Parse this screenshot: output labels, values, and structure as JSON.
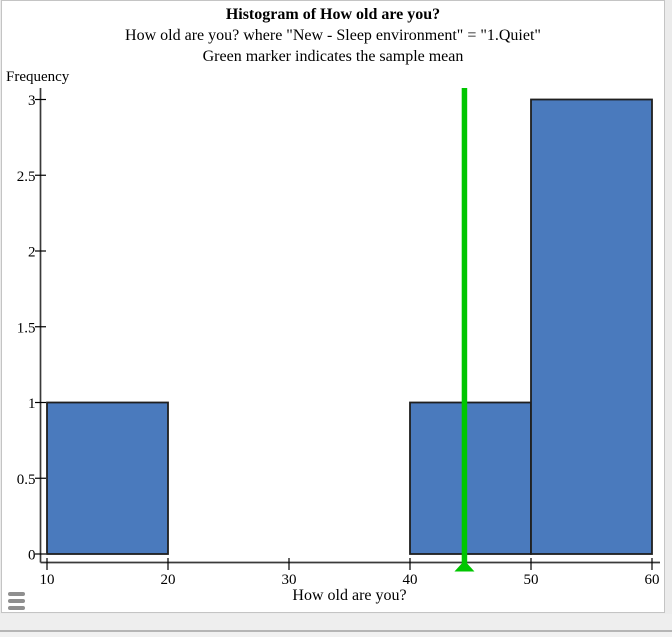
{
  "icons": {
    "menu": "hamburger-menu-icon"
  },
  "chart_data": {
    "type": "bar",
    "title": "Histogram of How old are you?",
    "subtitle": "How old are you? where \"New - Sleep environment\" = \"1.Quiet\"",
    "note": "Green marker indicates the sample mean",
    "xlabel": "How old are you?",
    "ylabel": "Frequency",
    "xlim": [
      10,
      60
    ],
    "ylim": [
      0,
      3
    ],
    "x_ticks": [
      10,
      20,
      30,
      40,
      50,
      60
    ],
    "y_ticks": [
      0,
      0.5,
      1,
      1.5,
      2,
      2.5,
      3
    ],
    "bin_width": 10,
    "bins": [
      {
        "range": [
          10,
          20
        ],
        "frequency": 1
      },
      {
        "range": [
          20,
          30
        ],
        "frequency": 0
      },
      {
        "range": [
          30,
          40
        ],
        "frequency": 0
      },
      {
        "range": [
          40,
          50
        ],
        "frequency": 1
      },
      {
        "range": [
          50,
          60
        ],
        "frequency": 3
      }
    ],
    "sample_mean": 44.5,
    "grid": false,
    "legend": false,
    "colors": {
      "bar_fill": "#4a7abd",
      "bar_edge": "#1f1f1f",
      "axis": "#3a3a3a",
      "tick": "#000000",
      "mean_marker": "#00c600"
    }
  }
}
